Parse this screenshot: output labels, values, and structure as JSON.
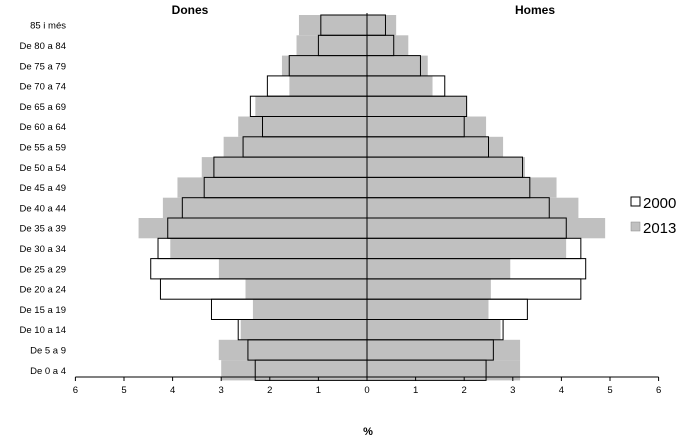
{
  "chart_data": {
    "type": "bar",
    "orientation": "horizontal",
    "subtype": "population-pyramid",
    "left_title": "Dones",
    "right_title": "Homes",
    "xlabel": "%",
    "xlim": [
      -6,
      6
    ],
    "x_tick_labels": [
      "6",
      "5",
      "4",
      "3",
      "2",
      "1",
      "0",
      "1",
      "2",
      "3",
      "4",
      "5",
      "6"
    ],
    "categories": [
      "85 i més",
      "De 80 a 84",
      "De 75 a 79",
      "De 70 a 74",
      "De 65 a 69",
      "De 60 a 64",
      "De 55 a 59",
      "De 50 a 54",
      "De 45 a 49",
      "De 40 a 44",
      "De 35 a 39",
      "De 30 a 34",
      "De 25 a 29",
      "De 20 a 24",
      "De 15 a 19",
      "De 10 a 14",
      "De 5 a 9",
      "De 0 a 4"
    ],
    "series": [
      {
        "name": "2000",
        "color": "#ffffff",
        "dones": [
          0.95,
          1.0,
          1.6,
          2.05,
          2.4,
          2.15,
          2.55,
          3.15,
          3.35,
          3.8,
          4.1,
          4.3,
          4.45,
          4.25,
          3.2,
          2.65,
          2.45,
          2.3
        ],
        "homes": [
          0.38,
          0.55,
          1.1,
          1.6,
          2.05,
          2.0,
          2.5,
          3.2,
          3.35,
          3.75,
          4.1,
          4.4,
          4.5,
          4.4,
          3.3,
          2.8,
          2.6,
          2.45
        ]
      },
      {
        "name": "2013",
        "color": "#c0c0c0",
        "dones": [
          1.4,
          1.45,
          1.75,
          1.6,
          2.3,
          2.65,
          2.95,
          3.4,
          3.9,
          4.2,
          4.7,
          4.05,
          3.05,
          2.5,
          2.35,
          2.6,
          3.05,
          3.0
        ],
        "homes": [
          0.6,
          0.85,
          1.25,
          1.35,
          2.05,
          2.45,
          2.8,
          3.25,
          3.9,
          4.35,
          4.9,
          4.1,
          2.95,
          2.55,
          2.5,
          2.75,
          3.15,
          3.15
        ]
      }
    ]
  }
}
